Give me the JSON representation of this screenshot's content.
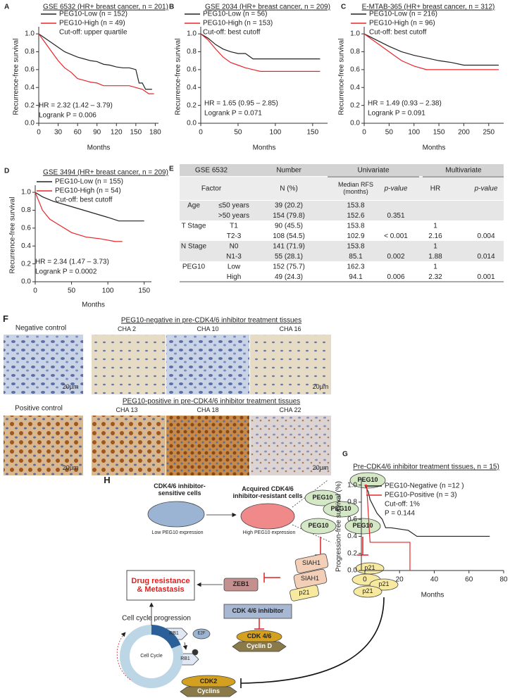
{
  "chart_data": [
    {
      "type": "line",
      "panel": "A",
      "title": "GSE 6532 (HR+ breast cancer, n = 201)",
      "ylabel": "Recurrence-free survival",
      "xlabel": "Months",
      "xlim": [
        0,
        185
      ],
      "ylim": [
        0,
        1.04
      ],
      "xticks": [
        0,
        30,
        60,
        90,
        120,
        150,
        180
      ],
      "yticks": [
        {
          "value": 0,
          "label": "0.0"
        },
        0.2,
        0.4,
        0.6,
        0.8,
        {
          "value": 1,
          "label": "1.0"
        }
      ],
      "series": [
        {
          "name": "PEG10-Low (n = 152)",
          "color": "#222222",
          "x": [
            0,
            10,
            20,
            30,
            40,
            50,
            60,
            70,
            80,
            90,
            100,
            110,
            120,
            130,
            140,
            150,
            155,
            160,
            165,
            175
          ],
          "values": [
            1,
            0.95,
            0.9,
            0.85,
            0.8,
            0.77,
            0.74,
            0.72,
            0.7,
            0.69,
            0.66,
            0.65,
            0.63,
            0.62,
            0.62,
            0.6,
            0.45,
            0.45,
            0.38,
            0.38
          ]
        },
        {
          "name": "PEG10-High (n = 49)",
          "color": "#e8262a",
          "x": [
            0,
            10,
            20,
            30,
            40,
            50,
            60,
            70,
            80,
            90,
            100,
            120,
            140,
            160,
            170,
            178
          ],
          "values": [
            1,
            0.9,
            0.8,
            0.7,
            0.62,
            0.57,
            0.5,
            0.48,
            0.46,
            0.45,
            0.42,
            0.42,
            0.42,
            0.38,
            0.33,
            0.33
          ]
        }
      ],
      "legend_notes": [
        "Cut-off: upper quartile"
      ],
      "notes": [
        "HR = 2.32 (1.42 – 3.79)",
        "Logrank P = 0.006"
      ]
    },
    {
      "type": "line",
      "panel": "B",
      "title": "GSE 2034 (HR+ breast cancer, n = 209)",
      "ylabel": "Recurrence-free survival",
      "xlabel": "Months",
      "xlim": [
        0,
        170
      ],
      "ylim": [
        0,
        1.04
      ],
      "xticks": [
        0,
        50,
        100,
        150
      ],
      "yticks": [
        {
          "value": 0,
          "label": "0.0"
        },
        0.2,
        0.4,
        0.6,
        0.8,
        {
          "value": 1,
          "label": "1.0"
        }
      ],
      "series": [
        {
          "name": "PEG10-Low (n = 56)",
          "color": "#222222",
          "x": [
            0,
            10,
            20,
            30,
            40,
            50,
            60,
            70,
            80,
            100,
            130,
            160
          ],
          "values": [
            1,
            0.95,
            0.88,
            0.83,
            0.8,
            0.78,
            0.78,
            0.72,
            0.72,
            0.72,
            0.72,
            0.72
          ]
        },
        {
          "name": "PEG10-High (n = 153)",
          "color": "#e8262a",
          "x": [
            0,
            10,
            20,
            30,
            40,
            50,
            60,
            70,
            80,
            100,
            130,
            160
          ],
          "values": [
            1,
            0.93,
            0.83,
            0.74,
            0.68,
            0.65,
            0.62,
            0.6,
            0.58,
            0.58,
            0.58,
            0.58
          ]
        }
      ],
      "legend_notes": [
        "Cut-off: best cutoff"
      ],
      "notes": [
        "HR = 1.65 (0.95 – 2.85)",
        "Logrank P = 0.071"
      ]
    },
    {
      "type": "line",
      "panel": "C",
      "title": "E-MTAB-365 (HR+ breast cancer, n = 312)",
      "ylabel": "Recurrence-free survival",
      "xlabel": "Months",
      "xlim": [
        0,
        280
      ],
      "ylim": [
        0,
        1.04
      ],
      "xticks": [
        0,
        50,
        100,
        150,
        200,
        250
      ],
      "yticks": [
        {
          "value": 0,
          "label": "0.0"
        },
        0.2,
        0.4,
        0.6,
        0.8,
        {
          "value": 1,
          "label": "1.0"
        }
      ],
      "series": [
        {
          "name": "PEG10-Low (n = 216)",
          "color": "#222222",
          "x": [
            0,
            25,
            50,
            75,
            100,
            125,
            150,
            175,
            200,
            250,
            270
          ],
          "values": [
            1,
            0.93,
            0.86,
            0.8,
            0.76,
            0.73,
            0.7,
            0.68,
            0.65,
            0.65,
            0.65
          ]
        },
        {
          "name": "PEG10-High (n = 96)",
          "color": "#e8262a",
          "x": [
            0,
            25,
            50,
            75,
            100,
            125,
            150,
            200,
            270
          ],
          "values": [
            1,
            0.9,
            0.8,
            0.7,
            0.64,
            0.6,
            0.6,
            0.6,
            0.6
          ]
        }
      ],
      "legend_notes": [
        "Cut-off: best cutoff"
      ],
      "notes": [
        "HR = 1.49 (0.93 – 2.38)",
        "Logrank P = 0.091"
      ]
    },
    {
      "type": "line",
      "panel": "D",
      "title": "GSE 3494 (HR+ breast cancer, n = 209)",
      "ylabel": "Recurrence-free survival",
      "xlabel": "Months",
      "xlim": [
        0,
        160
      ],
      "ylim": [
        0,
        1.04
      ],
      "xticks": [
        0,
        50,
        100,
        150
      ],
      "yticks": [
        {
          "value": 0,
          "label": "0.0"
        },
        0.2,
        0.4,
        0.6,
        0.8,
        {
          "value": 1,
          "label": "1.0"
        }
      ],
      "series": [
        {
          "name": "PEG10-Low (n = 155)",
          "color": "#222222",
          "x": [
            0,
            10,
            25,
            50,
            75,
            100,
            115,
            125,
            150
          ],
          "values": [
            1,
            0.95,
            0.9,
            0.84,
            0.78,
            0.72,
            0.68,
            0.68,
            0.68
          ]
        },
        {
          "name": "PEG10-High (n = 54)",
          "color": "#e8262a",
          "x": [
            0,
            10,
            20,
            30,
            50,
            70,
            90,
            110,
            120
          ],
          "values": [
            1,
            0.8,
            0.7,
            0.65,
            0.55,
            0.5,
            0.48,
            0.45,
            0.45
          ]
        }
      ],
      "legend_notes": [
        "Cut-off: best cutoff"
      ],
      "notes": [
        "HR = 2.34 (1.47 – 3.73)",
        "Logrank P = 0.0002"
      ]
    },
    {
      "type": "line",
      "panel": "G",
      "title": "Pre-CDK4/6 inhibitor treatment tissues, n = 15)",
      "ylabel": "Progression-free survival (%)",
      "xlabel": "Months",
      "xlim": [
        -2,
        80
      ],
      "ylim": [
        0,
        1.03
      ],
      "xticks": [
        0,
        20,
        40,
        60,
        80
      ],
      "yticks": [
        {
          "value": 0,
          "label": "0.0"
        },
        0.2,
        0.4,
        0.6,
        0.8,
        {
          "value": 1,
          "label": "1.0"
        }
      ],
      "series": [
        {
          "name": "PEG10-Negative (n =12 )",
          "color": "#222222",
          "x": [
            0,
            2,
            3,
            5,
            7,
            10,
            12,
            15,
            25,
            30,
            35,
            40,
            72
          ],
          "values": [
            1,
            0.92,
            0.83,
            0.75,
            0.67,
            0.6,
            0.5,
            0.5,
            0.47,
            0.4,
            0.4,
            0.4,
            0.4
          ]
        },
        {
          "name": "PEG10-Positive (n = 3)",
          "color": "#e8262a",
          "x": [
            0,
            1,
            2,
            3,
            26,
            26
          ],
          "values": [
            1,
            1,
            0.67,
            0.33,
            0.33,
            0
          ]
        }
      ],
      "legend_notes": [
        "Cut-off: 1%",
        "P = 0.144"
      ]
    }
  ],
  "table": {
    "panel": "E",
    "header": [
      "GSE 6532",
      "Number",
      "Univariate",
      "Multivariate"
    ],
    "subheader": [
      "Factor",
      "N (%)",
      "Median RFS (months)",
      "p-value",
      "HR",
      "p-value"
    ],
    "rows": [
      [
        "Age",
        "≤50 years",
        "39 (20.2)",
        "153.8",
        null,
        null,
        null
      ],
      [
        null,
        ">50 years",
        "154 (79.8)",
        "152.6",
        "0.351",
        null,
        null
      ],
      [
        "T Stage",
        "T1",
        "90 (45.5)",
        "153.8",
        null,
        "1",
        null
      ],
      [
        null,
        "T2-3",
        "108 (54.5)",
        "102.9",
        "< 0.001",
        "2.16",
        "0.004"
      ],
      [
        "N Stage",
        "N0",
        "141 (71.9)",
        "153.8",
        null,
        "1",
        null
      ],
      [
        null,
        "N1-3",
        "55 (28.1)",
        "85.1",
        "0.002",
        "1.88",
        "0.014"
      ],
      [
        "PEG10",
        "Low",
        "152 (75.7)",
        "162.3",
        null,
        "1",
        null
      ],
      [
        null,
        "High",
        "49 (24.3)",
        "94.1",
        "0.006",
        "2.32",
        "0.001"
      ]
    ]
  },
  "figure_f": {
    "panel": "F",
    "negative_control": "Negative control",
    "negative_title": "PEG10-negative in pre-CDK4/6 inhibitor treatment tissues",
    "negative_samples": [
      "CHA 2",
      "CHA 10",
      "CHA 16"
    ],
    "positive_control": "Positive control",
    "positive_title": "PEG10-positive in pre-CDK4/6 inhibitor treatment tissues",
    "positive_samples": [
      "CHA 13",
      "CHA 18",
      "CHA 22"
    ],
    "scale_bars": [
      "20µm",
      "20µm",
      "20µm",
      "20µm"
    ]
  },
  "diagram": {
    "panel": "H",
    "sensitive_cells": "CDK4/6 inhibitor-sensitive cells",
    "low_expression": "Low PEG10 expression",
    "resistant_cells": "Acquired CDK4/6 inhibitor-resistant cells",
    "high_expression": "High PEG10 expression",
    "peg10": [
      "PEG10",
      "PEG10",
      "PEG10",
      "PEG10",
      "PEG10"
    ],
    "siah1": [
      "SIAH1",
      "SIAH1"
    ],
    "p21": [
      "p21",
      "p21",
      "p21",
      "p21"
    ],
    "zeb1": "ZEB1",
    "outcome": "Drug resistance & Metastasis",
    "inhibitor": "CDK 4/6 inhibitor",
    "rb1": [
      "RB1",
      "RB1"
    ],
    "e2f": "E2F",
    "cdk46": "CDK 4/6",
    "cyclin_d": "Cyclin D",
    "cell_cycle": "Cell Cycle",
    "progression": "Cell cycle progression",
    "cdk2": "CDK2",
    "cyclins": "Cyclins"
  }
}
